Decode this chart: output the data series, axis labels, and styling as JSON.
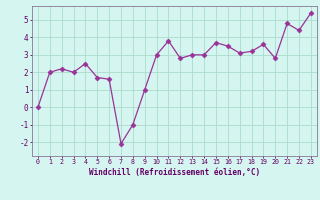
{
  "x": [
    0,
    1,
    2,
    3,
    4,
    5,
    6,
    7,
    8,
    9,
    10,
    11,
    12,
    13,
    14,
    15,
    16,
    17,
    18,
    19,
    20,
    21,
    22,
    23
  ],
  "y": [
    0.0,
    2.0,
    2.2,
    2.0,
    2.5,
    1.7,
    1.6,
    -2.1,
    -1.0,
    1.0,
    3.0,
    3.8,
    2.8,
    3.0,
    3.0,
    3.7,
    3.5,
    3.1,
    3.2,
    3.6,
    2.8,
    4.8,
    4.4,
    5.4
  ],
  "xlabel": "Windchill (Refroidissement éolien,°C)",
  "ylim": [
    -2.8,
    5.8
  ],
  "yticks": [
    -2,
    -1,
    0,
    1,
    2,
    3,
    4,
    5
  ],
  "xticks": [
    0,
    1,
    2,
    3,
    4,
    5,
    6,
    7,
    8,
    9,
    10,
    11,
    12,
    13,
    14,
    15,
    16,
    17,
    18,
    19,
    20,
    21,
    22,
    23
  ],
  "line_color": "#993399",
  "marker_color": "#993399",
  "bg_color": "#d5f5f0",
  "grid_color": "#aaddcc",
  "tick_color": "#660066",
  "label_color": "#660066",
  "spine_color": "#887799"
}
